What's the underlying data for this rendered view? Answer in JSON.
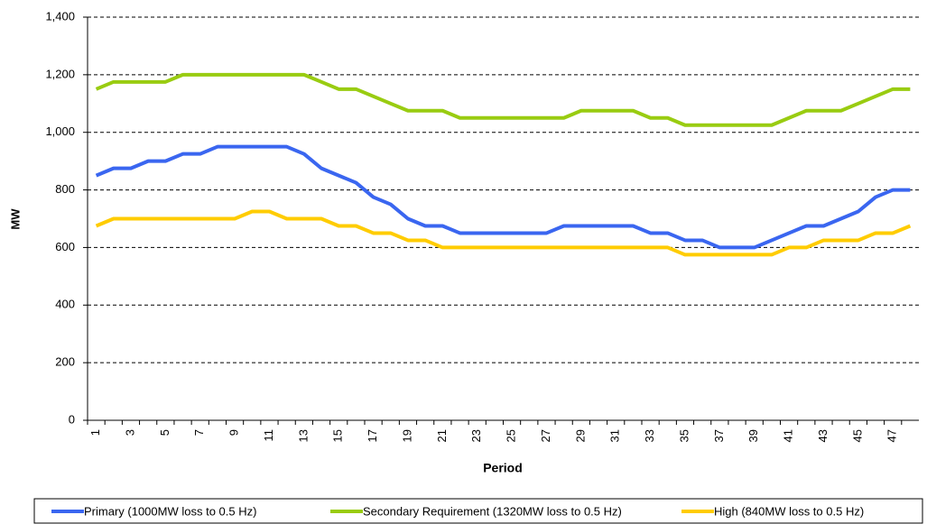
{
  "chart_data": {
    "type": "line",
    "x_label": "Period",
    "y_label": "MW",
    "categories": [
      1,
      null,
      3,
      null,
      5,
      null,
      7,
      null,
      9,
      null,
      11,
      null,
      13,
      null,
      15,
      null,
      17,
      null,
      19,
      null,
      21,
      null,
      23,
      null,
      25,
      null,
      27,
      null,
      29,
      null,
      31,
      null,
      33,
      null,
      35,
      null,
      37,
      null,
      39,
      null,
      41,
      null,
      43,
      null,
      45,
      null,
      47,
      null
    ],
    "series": [
      {
        "name": "Primary (1000MW loss to 0.5 Hz)",
        "color": "#3a66f0",
        "values": [
          850,
          875,
          875,
          900,
          900,
          925,
          925,
          950,
          950,
          950,
          950,
          950,
          925,
          875,
          850,
          825,
          775,
          750,
          700,
          675,
          675,
          650,
          650,
          650,
          650,
          650,
          650,
          675,
          675,
          675,
          675,
          675,
          650,
          650,
          625,
          625,
          600,
          600,
          600,
          625,
          650,
          675,
          675,
          700,
          725,
          775,
          800,
          800
        ]
      },
      {
        "name": "Secondary Requirement (1320MW loss to 0.5 Hz)",
        "color": "#99cc11",
        "values": [
          1150,
          1175,
          1175,
          1175,
          1175,
          1200,
          1200,
          1200,
          1200,
          1200,
          1200,
          1200,
          1200,
          1175,
          1150,
          1150,
          1125,
          1100,
          1075,
          1075,
          1075,
          1050,
          1050,
          1050,
          1050,
          1050,
          1050,
          1050,
          1075,
          1075,
          1075,
          1075,
          1050,
          1050,
          1025,
          1025,
          1025,
          1025,
          1025,
          1025,
          1050,
          1075,
          1075,
          1075,
          1100,
          1125,
          1150,
          1150
        ]
      },
      {
        "name": "High (840MW loss to 0.5 Hz)",
        "color": "#ffcc00",
        "values": [
          675,
          700,
          700,
          700,
          700,
          700,
          700,
          700,
          700,
          725,
          725,
          700,
          700,
          700,
          675,
          675,
          650,
          650,
          625,
          625,
          600,
          600,
          600,
          600,
          600,
          600,
          600,
          600,
          600,
          600,
          600,
          600,
          600,
          600,
          575,
          575,
          575,
          575,
          575,
          575,
          600,
          600,
          625,
          625,
          625,
          650,
          650,
          675
        ]
      }
    ],
    "ylim": [
      0,
      1400
    ],
    "yticks": [
      0,
      200,
      400,
      600,
      800,
      {
        "value": 1000,
        "label": "1,000"
      },
      {
        "value": 1200,
        "label": "1,200"
      },
      {
        "value": 1400,
        "label": "1,400"
      }
    ],
    "grid": true,
    "legend": "bottom"
  }
}
